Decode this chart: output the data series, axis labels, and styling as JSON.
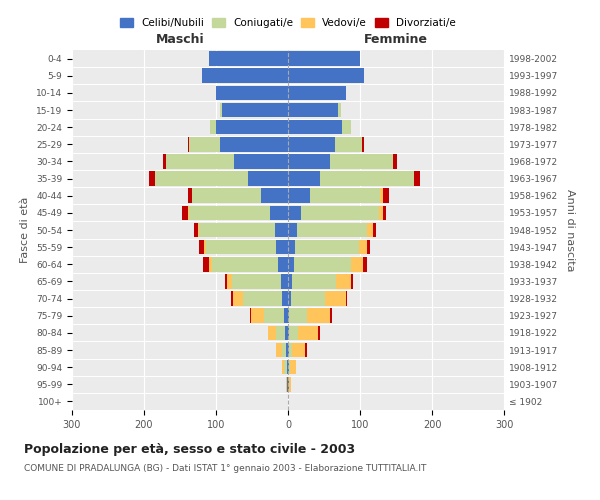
{
  "age_groups": [
    "100+",
    "95-99",
    "90-94",
    "85-89",
    "80-84",
    "75-79",
    "70-74",
    "65-69",
    "60-64",
    "55-59",
    "50-54",
    "45-49",
    "40-44",
    "35-39",
    "30-34",
    "25-29",
    "20-24",
    "15-19",
    "10-14",
    "5-9",
    "0-4"
  ],
  "birth_years": [
    "≤ 1902",
    "1903-1907",
    "1908-1912",
    "1913-1917",
    "1918-1922",
    "1923-1927",
    "1928-1932",
    "1933-1937",
    "1938-1942",
    "1943-1947",
    "1948-1952",
    "1953-1957",
    "1958-1962",
    "1963-1967",
    "1968-1972",
    "1973-1977",
    "1978-1982",
    "1983-1987",
    "1988-1992",
    "1993-1997",
    "1998-2002"
  ],
  "maschi_celibi": [
    0,
    1,
    2,
    3,
    4,
    5,
    8,
    10,
    14,
    16,
    18,
    25,
    38,
    55,
    75,
    95,
    100,
    92,
    100,
    120,
    110
  ],
  "maschi_coniugati": [
    0,
    1,
    3,
    5,
    12,
    28,
    55,
    68,
    92,
    98,
    105,
    112,
    95,
    130,
    95,
    42,
    8,
    3,
    0,
    0,
    0
  ],
  "maschi_vedovi": [
    0,
    1,
    3,
    8,
    12,
    18,
    14,
    7,
    4,
    3,
    2,
    2,
    1,
    0,
    0,
    0,
    0,
    0,
    0,
    0,
    0
  ],
  "maschi_divorziati": [
    0,
    0,
    0,
    0,
    0,
    2,
    2,
    2,
    8,
    6,
    6,
    8,
    5,
    8,
    4,
    2,
    1,
    0,
    0,
    0,
    0
  ],
  "femmine_nubili": [
    0,
    1,
    1,
    2,
    2,
    2,
    4,
    6,
    8,
    10,
    12,
    18,
    30,
    45,
    58,
    65,
    75,
    70,
    80,
    105,
    100
  ],
  "femmine_coniugate": [
    0,
    1,
    2,
    4,
    12,
    25,
    48,
    60,
    80,
    88,
    98,
    108,
    98,
    130,
    88,
    38,
    12,
    4,
    0,
    0,
    0
  ],
  "femmine_vedove": [
    0,
    2,
    8,
    18,
    28,
    32,
    28,
    22,
    16,
    12,
    8,
    6,
    4,
    0,
    0,
    0,
    0,
    0,
    0,
    0,
    0
  ],
  "femmine_divorziate": [
    0,
    0,
    0,
    2,
    2,
    2,
    2,
    2,
    6,
    4,
    4,
    4,
    8,
    8,
    5,
    2,
    1,
    0,
    0,
    0,
    0
  ],
  "colors": {
    "celibi": "#4472c4",
    "coniugati": "#c5d89b",
    "vedovi": "#ffc55a",
    "divorziati": "#c00000"
  },
  "title": "Popolazione per età, sesso e stato civile - 2003",
  "subtitle": "COMUNE DI PRADALUNGA (BG) - Dati ISTAT 1° gennaio 2003 - Elaborazione TUTTITALIA.IT",
  "ylabel_left": "Fasce di età",
  "ylabel_right": "Anni di nascita",
  "xlabel_maschi": "Maschi",
  "xlabel_femmine": "Femmine",
  "legend_labels": [
    "Celibi/Nubili",
    "Coniugati/e",
    "Vedovi/e",
    "Divorziati/e"
  ]
}
